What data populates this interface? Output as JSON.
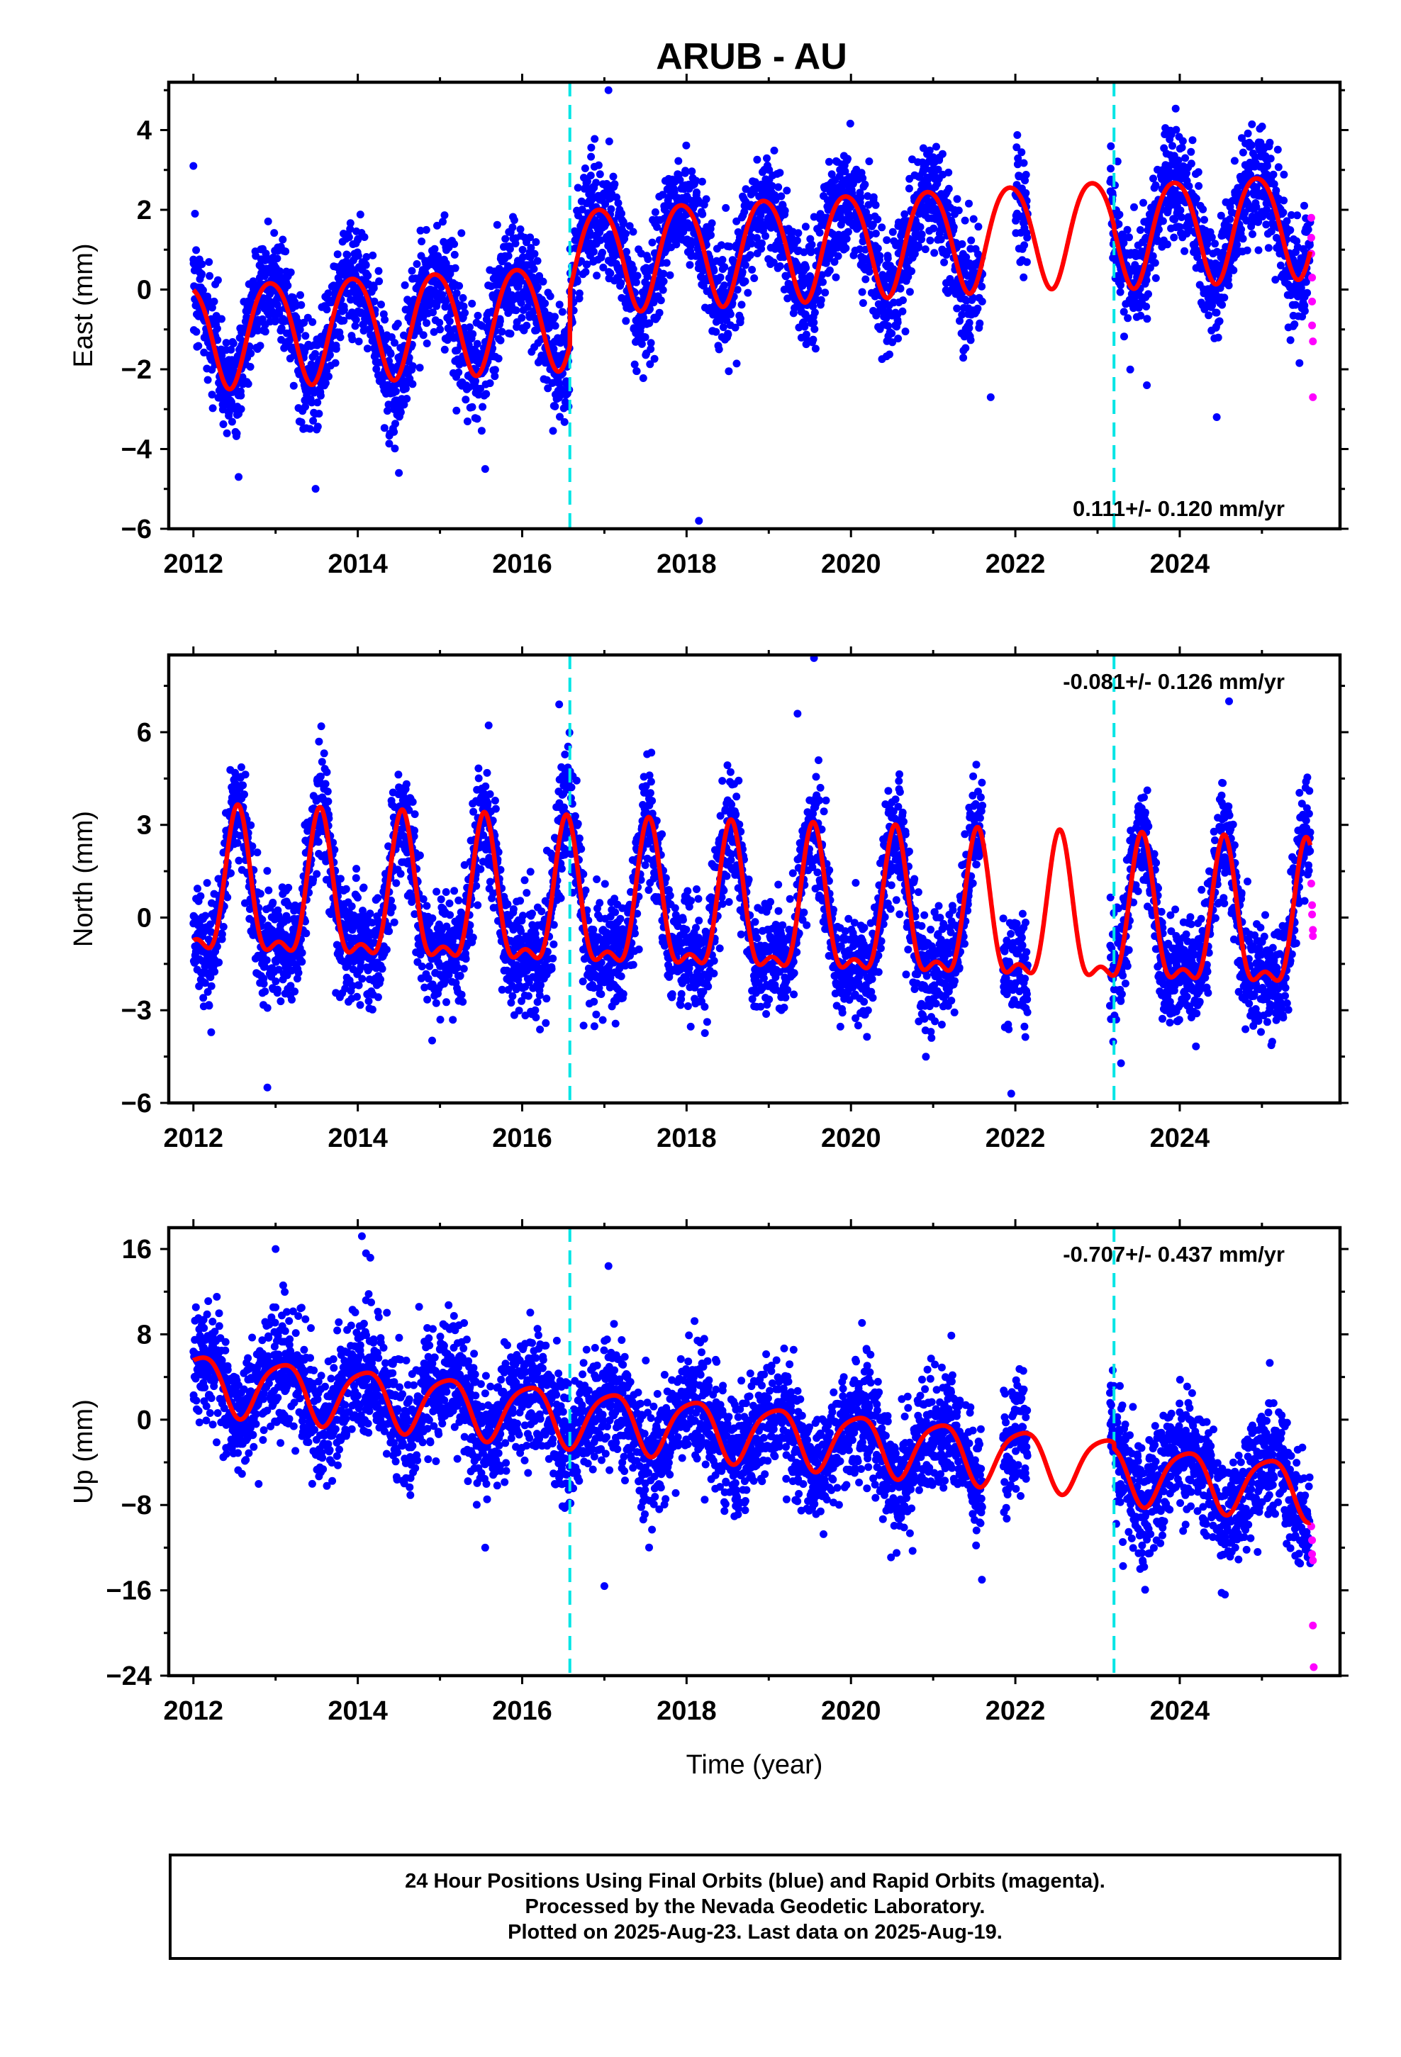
{
  "title": "ARUB - AU",
  "footer": {
    "line1": "24 Hour Positions Using Final Orbits (blue) and Rapid Orbits (magenta).",
    "line2": "Processed by the Nevada Geodetic Laboratory.",
    "line3": "Plotted on 2025-Aug-23. Last data on 2025-Aug-19."
  },
  "colors": {
    "final_orbits": "#0000ff",
    "rapid_orbits": "#ff00ff",
    "model_fit": "#ff0000",
    "equipment_change": "#00e5e5"
  },
  "chart_data": [
    {
      "type": "scatter",
      "panel": "east",
      "ylabel": "East (mm)",
      "xlabel": "",
      "xlim": [
        2011.7,
        2025.95
      ],
      "ylim": [
        -6,
        5.2
      ],
      "xticks": [
        2012,
        2014,
        2016,
        2018,
        2020,
        2022,
        2024
      ],
      "yticks": [
        -6,
        -4,
        -2,
        0,
        2,
        4
      ],
      "vlines": [
        2016.58,
        2023.2
      ],
      "annotation": "0.111+/- 0.120 mm/yr",
      "annotation_position": "bottom-right",
      "model": {
        "trend_mm_per_yr": 0.111,
        "offsets": [
          {
            "at": 2016.58,
            "value": 1.4
          },
          {
            "at": 2023.2,
            "value": -0.1
          }
        ],
        "base": -1.1,
        "base_epoch": 2012.0,
        "annual_amplitude": 1.3,
        "annual_peak_year_fraction": 0.94,
        "semiannual_amplitude": 0.15,
        "semiannual_peak_year_fraction": 0.2
      },
      "gaps": [
        [
          2021.6,
          2022.0
        ],
        [
          2022.15,
          2023.15
        ]
      ],
      "scatter_std_mm": 0.7,
      "rapid_orbit_points": [
        [
          2025.6,
          1.8
        ],
        [
          2025.6,
          1.3
        ],
        [
          2025.6,
          0.9
        ],
        [
          2025.61,
          0.3
        ],
        [
          2025.61,
          -0.3
        ],
        [
          2025.61,
          -0.9
        ],
        [
          2025.62,
          -1.3
        ],
        [
          2025.62,
          -2.7
        ]
      ],
      "outliers": [
        [
          2012.0,
          3.1
        ],
        [
          2012.55,
          -4.7
        ],
        [
          2014.5,
          -4.6
        ],
        [
          2015.55,
          -4.5
        ],
        [
          2017.05,
          5.0
        ],
        [
          2018.15,
          -5.8
        ],
        [
          2021.7,
          -2.7
        ],
        [
          2023.6,
          -2.4
        ],
        [
          2024.45,
          -3.2
        ]
      ]
    },
    {
      "type": "scatter",
      "panel": "north",
      "ylabel": "North (mm)",
      "xlabel": "",
      "xlim": [
        2011.7,
        2025.95
      ],
      "ylim": [
        -6,
        8.5
      ],
      "xticks": [
        2012,
        2014,
        2016,
        2018,
        2020,
        2022,
        2024
      ],
      "yticks": [
        -6,
        -3,
        0,
        3,
        6
      ],
      "vlines": [
        2016.58,
        2023.2
      ],
      "annotation": "-0.081+/- 0.126 mm/yr",
      "annotation_position": "top-right",
      "model": {
        "trend_mm_per_yr": -0.081,
        "offsets": [],
        "base": 0.6,
        "base_epoch": 2012.0,
        "annual_amplitude": 2.2,
        "annual_peak_year_fraction": 0.54,
        "semiannual_amplitude": 0.9,
        "semiannual_peak_year_fraction": 0.04
      },
      "gaps": [
        [
          2021.6,
          2021.85
        ],
        [
          2022.15,
          2023.15
        ]
      ],
      "scatter_std_mm": 0.9,
      "rapid_orbit_points": [
        [
          2025.6,
          1.1
        ],
        [
          2025.61,
          0.4
        ],
        [
          2025.61,
          0.1
        ],
        [
          2025.62,
          -0.4
        ],
        [
          2025.62,
          -0.6
        ]
      ],
      "outliers": [
        [
          2012.9,
          -5.5
        ],
        [
          2016.45,
          6.9
        ],
        [
          2019.35,
          6.6
        ],
        [
          2019.55,
          8.4
        ],
        [
          2021.95,
          -5.7
        ],
        [
          2024.6,
          7.0
        ]
      ]
    },
    {
      "type": "scatter",
      "panel": "up",
      "ylabel": "Up (mm)",
      "xlabel": "Time (year)",
      "xlim": [
        2011.7,
        2025.95
      ],
      "ylim": [
        -24,
        18
      ],
      "xticks": [
        2012,
        2014,
        2016,
        2018,
        2020,
        2022,
        2024
      ],
      "yticks": [
        -24,
        -16,
        -8,
        0,
        8,
        16
      ],
      "vlines": [
        2016.58,
        2023.2
      ],
      "annotation": "-0.707+/- 0.437 mm/yr",
      "annotation_position": "top-right",
      "model": {
        "trend_mm_per_yr": -0.707,
        "offsets": [
          {
            "at": 2023.2,
            "value": -0.5
          }
        ],
        "base": 3.6,
        "base_epoch": 2012.0,
        "annual_amplitude": 2.7,
        "annual_peak_year_fraction": 0.08,
        "semiannual_amplitude": 0.5,
        "semiannual_peak_year_fraction": 0.3
      },
      "gaps": [
        [
          2021.6,
          2021.85
        ],
        [
          2022.15,
          2023.15
        ]
      ],
      "scatter_std_mm": 2.8,
      "rapid_orbit_points": [
        [
          2025.6,
          -10.0
        ],
        [
          2025.61,
          -11.3
        ],
        [
          2025.61,
          -12.6
        ],
        [
          2025.62,
          -13.2
        ],
        [
          2025.62,
          -19.3
        ],
        [
          2025.63,
          -23.2
        ]
      ],
      "outliers": [
        [
          2014.05,
          17.2
        ],
        [
          2013.0,
          16.0
        ],
        [
          2014.1,
          15.6
        ],
        [
          2015.55,
          -12.0
        ],
        [
          2017.0,
          -15.6
        ],
        [
          2017.05,
          14.4
        ],
        [
          2020.75,
          -12.3
        ],
        [
          2024.55,
          -16.4
        ]
      ]
    }
  ]
}
